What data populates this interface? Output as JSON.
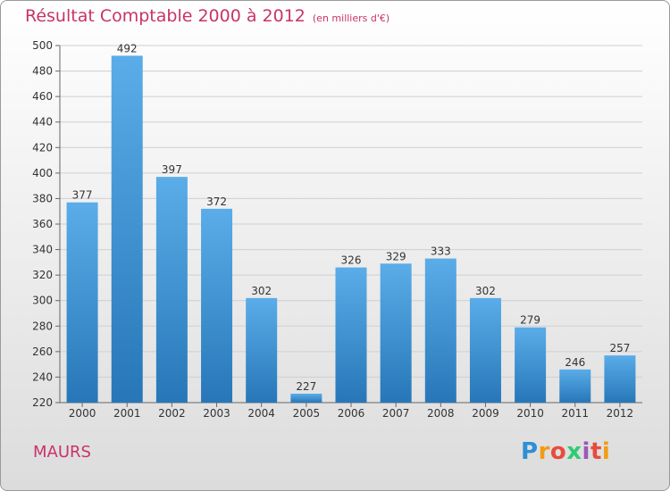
{
  "title": "Résultat Comptable 2000 à 2012",
  "unit": "(en milliers d'€)",
  "commune": "MAURS",
  "logo_text": "Proxiti",
  "colors": {
    "title": "#c8336a",
    "bar_top": "#5aade8",
    "bar_bottom": "#2777b8"
  },
  "chart_data": {
    "type": "bar",
    "title": "Résultat Comptable 2000 à 2012",
    "xlabel": "",
    "ylabel": "",
    "categories": [
      "2000",
      "2001",
      "2002",
      "2003",
      "2004",
      "2005",
      "2006",
      "2007",
      "2008",
      "2009",
      "2010",
      "2011",
      "2012"
    ],
    "values": [
      377,
      492,
      397,
      372,
      302,
      227,
      326,
      329,
      333,
      302,
      279,
      246,
      257
    ],
    "ylim": [
      220,
      500
    ],
    "yticks": [
      220,
      240,
      260,
      280,
      300,
      320,
      340,
      360,
      380,
      400,
      420,
      440,
      460,
      480,
      500
    ],
    "grid": true,
    "data_labels": true
  }
}
